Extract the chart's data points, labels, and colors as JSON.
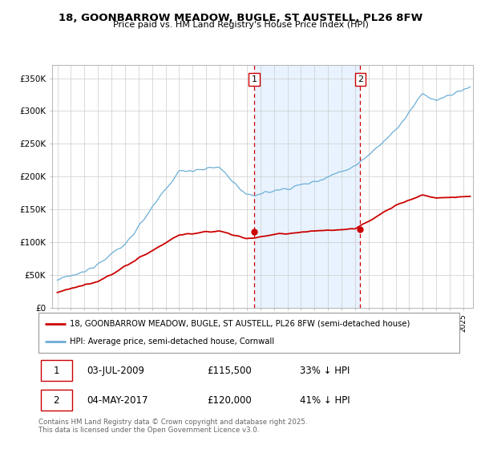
{
  "title": "18, GOONBARROW MEADOW, BUGLE, ST AUSTELL, PL26 8FW",
  "subtitle": "Price paid vs. HM Land Registry's House Price Index (HPI)",
  "legend_line1": "18, GOONBARROW MEADOW, BUGLE, ST AUSTELL, PL26 8FW (semi-detached house)",
  "legend_line2": "HPI: Average price, semi-detached house, Cornwall",
  "footer": "Contains HM Land Registry data © Crown copyright and database right 2025.\nThis data is licensed under the Open Government Licence v3.0.",
  "sale1_date": "03-JUL-2009",
  "sale1_price": 115500,
  "sale1_label": "1",
  "sale1_note": "33% ↓ HPI",
  "sale2_date": "04-MAY-2017",
  "sale2_price": 120000,
  "sale2_label": "2",
  "sale2_note": "41% ↓ HPI",
  "hpi_color": "#6baed6",
  "price_color": "#cc0000",
  "sale_marker_color": "#cc0000",
  "vline_color": "#cc0000",
  "shade_color": "#ddeeff",
  "ylim": [
    0,
    370000
  ],
  "yticks": [
    0,
    50000,
    100000,
    150000,
    200000,
    250000,
    300000,
    350000
  ],
  "background_color": "#ffffff",
  "grid_color": "#cccccc"
}
